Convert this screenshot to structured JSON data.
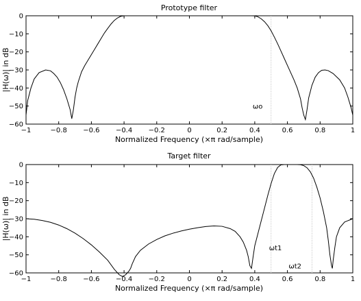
{
  "chart_data": [
    {
      "type": "line",
      "title": "Prototype filter",
      "xlabel": "Normalized Frequency  (×π rad/sample)",
      "ylabel": "|H(ω)| in dB",
      "xlim": [
        -1,
        1
      ],
      "ylim": [
        -60,
        0
      ],
      "x_ticks": [
        "−1",
        "−0.8",
        "−0.6",
        "−0.4",
        "−0.2",
        "0",
        "0.2",
        "0.4",
        "0.6",
        "0.8",
        "1"
      ],
      "y_ticks": [
        "0",
        "−10",
        "−20",
        "−30",
        "−40",
        "−50",
        "−60"
      ],
      "grid": false,
      "series": [
        {
          "color": "#000000",
          "x": [
            -1.0,
            -0.99,
            -0.97,
            -0.95,
            -0.92,
            -0.88,
            -0.85,
            -0.83,
            -0.81,
            -0.79,
            -0.77,
            -0.75,
            -0.73,
            -0.72,
            -0.71,
            -0.7,
            -0.69,
            -0.68,
            -0.66,
            -0.64,
            -0.62,
            -0.6,
            -0.58,
            -0.56,
            -0.54,
            -0.52,
            -0.5,
            -0.48,
            -0.46,
            -0.44,
            -0.42,
            -0.4,
            -0.38,
            -0.3,
            -0.2,
            -0.1,
            0.0,
            0.1,
            0.2,
            0.3,
            0.38,
            0.4,
            0.42,
            0.44,
            0.46,
            0.48,
            0.5,
            0.52,
            0.54,
            0.56,
            0.58,
            0.6,
            0.62,
            0.64,
            0.66,
            0.68,
            0.69,
            0.7,
            0.71,
            0.72,
            0.73,
            0.75,
            0.77,
            0.79,
            0.81,
            0.83,
            0.85,
            0.88,
            0.92,
            0.95,
            0.97,
            0.99,
            1.0
          ],
          "y": [
            -55,
            -47,
            -40,
            -35,
            -31.5,
            -30,
            -30.5,
            -32,
            -34,
            -37,
            -41,
            -46,
            -52,
            -57,
            -52,
            -45,
            -40,
            -36.5,
            -31,
            -27.5,
            -24.5,
            -21.5,
            -18.5,
            -15.5,
            -12.5,
            -9.5,
            -7,
            -4.6,
            -2.6,
            -1.2,
            -0.3,
            0,
            0,
            0,
            0,
            0,
            0,
            0,
            0,
            0,
            0,
            -0.05,
            -0.6,
            -1.7,
            -3.3,
            -5.5,
            -8.3,
            -11.8,
            -15.5,
            -19.5,
            -23.5,
            -27.5,
            -31.5,
            -35.5,
            -40,
            -46,
            -51,
            -55,
            -57.5,
            -52,
            -45.5,
            -38.5,
            -34,
            -31.5,
            -30.2,
            -30,
            -30.4,
            -32,
            -35.5,
            -40,
            -45,
            -51,
            -55
          ]
        }
      ],
      "markers": [
        {
          "x": 0.5,
          "label": "ωo",
          "label_at": [
            0.4,
            -50
          ]
        }
      ]
    },
    {
      "type": "line",
      "title": "Target filter",
      "xlabel": "Normalized Frequency  (×π rad/sample)",
      "ylabel": "|H(ω)| in dB",
      "xlim": [
        -1,
        1
      ],
      "ylim": [
        -60,
        0
      ],
      "x_ticks": [
        "−1",
        "−0.8",
        "−0.6",
        "−0.4",
        "−0.2",
        "0",
        "0.2",
        "0.4",
        "0.6",
        "0.8",
        "1"
      ],
      "y_ticks": [
        "0",
        "−10",
        "−20",
        "−30",
        "−40",
        "−50",
        "−60"
      ],
      "grid": false,
      "series": [
        {
          "color": "#000000",
          "x": [
            -1.0,
            -0.95,
            -0.9,
            -0.85,
            -0.8,
            -0.75,
            -0.7,
            -0.65,
            -0.6,
            -0.55,
            -0.5,
            -0.46,
            -0.43,
            -0.41,
            -0.39,
            -0.38,
            -0.37,
            -0.36,
            -0.35,
            -0.33,
            -0.3,
            -0.25,
            -0.2,
            -0.15,
            -0.1,
            -0.05,
            0.0,
            0.05,
            0.1,
            0.15,
            0.2,
            0.25,
            0.28,
            0.31,
            0.33,
            0.35,
            0.36,
            0.37,
            0.38,
            0.39,
            0.4,
            0.42,
            0.44,
            0.46,
            0.48,
            0.5,
            0.52,
            0.54,
            0.56,
            0.58,
            0.6,
            0.62,
            0.64,
            0.66,
            0.68,
            0.7,
            0.72,
            0.74,
            0.76,
            0.78,
            0.8,
            0.82,
            0.84,
            0.85,
            0.86,
            0.87,
            0.875,
            0.88,
            0.89,
            0.9,
            0.92,
            0.95,
            1.0
          ],
          "y": [
            -30,
            -30.3,
            -31,
            -32,
            -33.5,
            -35.5,
            -38,
            -41,
            -44.5,
            -48.5,
            -53,
            -58,
            -61,
            -62,
            -61,
            -60,
            -59,
            -57.5,
            -55,
            -51,
            -47.5,
            -44,
            -41.5,
            -39.5,
            -38,
            -36.8,
            -35.8,
            -35,
            -34.3,
            -34,
            -34.2,
            -35.5,
            -37,
            -40,
            -43,
            -47.5,
            -51,
            -56,
            -57.5,
            -51,
            -45,
            -38,
            -31,
            -24,
            -17,
            -10.5,
            -5,
            -1.6,
            -0.2,
            0,
            0,
            0,
            0,
            0,
            -0.1,
            -0.6,
            -1.8,
            -4,
            -7.5,
            -12.5,
            -18.5,
            -26,
            -35,
            -42,
            -50,
            -56,
            -57.5,
            -53,
            -46,
            -40,
            -35,
            -31.8,
            -30
          ]
        }
      ],
      "markers": [
        {
          "x": 0.5,
          "label": "ωt1",
          "label_at": [
            0.5,
            -46
          ]
        },
        {
          "x": 0.75,
          "label": "ωt2",
          "label_at": [
            0.62,
            -56
          ]
        }
      ]
    }
  ]
}
